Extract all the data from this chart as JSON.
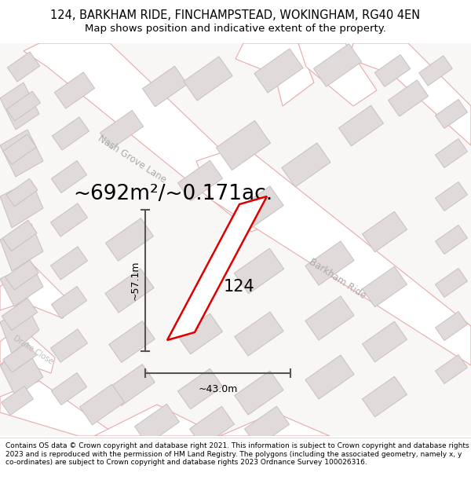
{
  "title": "124, BARKHAM RIDE, FINCHAMPSTEAD, WOKINGHAM, RG40 4EN",
  "subtitle": "Map shows position and indicative extent of the property.",
  "area_text": "~692m²/~0.171ac.",
  "label_124": "124",
  "dim_width": "~43.0m",
  "dim_height": "~57.1m",
  "bg_color": "#f9f6f6",
  "road_fill": "#ffffff",
  "road_stroke": "#e8aaaa",
  "building_fill": "#e0dada",
  "building_stroke": "#c8c0c0",
  "property_stroke": "#dd0000",
  "property_fill": "#ffffff",
  "dim_color": "#555555",
  "footer_text": "Contains OS data © Crown copyright and database right 2021. This information is subject to Crown copyright and database rights 2023 and is reproduced with the permission of HM Land Registry. The polygons (including the associated geometry, namely x, y co-ordinates) are subject to Crown copyright and database rights 2023 Ordnance Survey 100026316.",
  "road_name_nash": "Nash Grove Lane",
  "road_name_barkham": "Barkham Ride",
  "road_name_drake": "Drake Close",
  "title_fontsize": 10.5,
  "subtitle_fontsize": 9.5,
  "area_fontsize": 19,
  "label_fontsize": 15,
  "dim_fontsize": 9,
  "road_label_fontsize": 8.5,
  "footer_fontsize": 6.5
}
